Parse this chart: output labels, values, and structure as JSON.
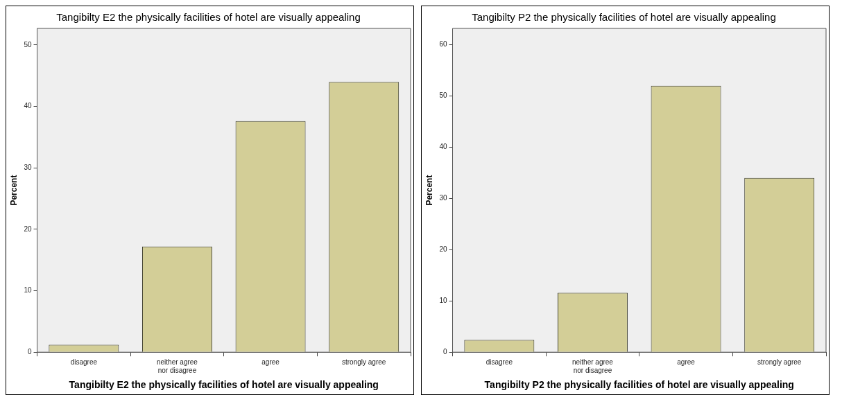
{
  "chart_data": [
    {
      "type": "bar",
      "title": "Tangibilty E2 the physically facilities of hotel are visually appealing",
      "xlabel": "Tangibilty E2 the physically facilities of hotel are visually appealing",
      "ylabel": "Percent",
      "categories": [
        "disagree",
        "neither agree nor disagree",
        "agree",
        "strongly agree"
      ],
      "values": [
        1.2,
        17.2,
        37.6,
        44.0
      ],
      "color": "#d3ce97",
      "ylim": [
        0,
        52.7
      ],
      "yticks": [
        0,
        10,
        20,
        30,
        40,
        50
      ],
      "grid": false,
      "legend": false
    },
    {
      "type": "bar",
      "title": "Tangibilty P2 the physically facilities of hotel are visually appealing",
      "xlabel": "Tangibilty P2 the physically facilities of hotel are visually appealing",
      "ylabel": "Percent",
      "categories": [
        "disagree",
        "neither agree nor disagree",
        "agree",
        "strongly agree"
      ],
      "values": [
        2.4,
        11.6,
        52.0,
        34.0
      ],
      "color": "#d3ce97",
      "ylim": [
        0,
        63.2
      ],
      "yticks": [
        0,
        10,
        20,
        30,
        40,
        50,
        60
      ],
      "grid": false,
      "legend": false
    }
  ]
}
